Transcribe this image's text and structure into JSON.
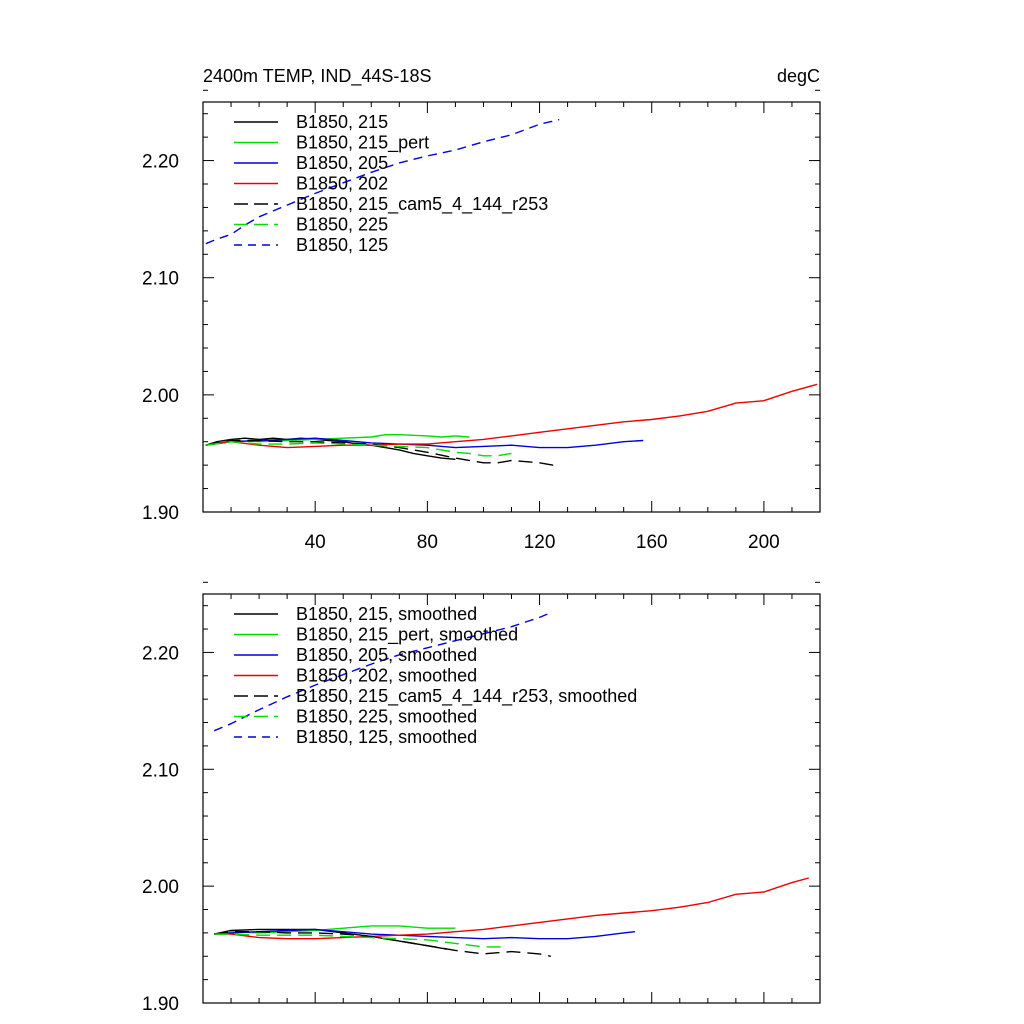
{
  "figure": {
    "title_left": "2400m TEMP, IND_44S-18S",
    "title_right": "degC"
  },
  "chart_data": [
    {
      "type": "line",
      "id": "raw",
      "xlim": [
        0,
        220
      ],
      "ylim": [
        1.9,
        2.25
      ],
      "xticks": [
        40,
        80,
        120,
        160,
        200
      ],
      "xtick_labels": [
        "40",
        "80",
        "120",
        "160",
        "200"
      ],
      "yticks": [
        1.9,
        2.0,
        2.1,
        2.2
      ],
      "ytick_labels": [
        "1.90",
        "2.00",
        "2.10",
        "2.20"
      ],
      "legend_position": "top-left",
      "series": [
        {
          "name": "B1850, 215",
          "color": "#000000",
          "dash": "solid",
          "x": [
            1,
            5,
            10,
            15,
            20,
            25,
            30,
            35,
            40,
            45,
            50,
            55,
            60,
            65,
            70,
            75,
            80,
            85,
            90
          ],
          "y": [
            1.957,
            1.96,
            1.962,
            1.963,
            1.962,
            1.963,
            1.962,
            1.963,
            1.962,
            1.961,
            1.96,
            1.958,
            1.957,
            1.955,
            1.953,
            1.95,
            1.948,
            1.946,
            1.945
          ]
        },
        {
          "name": "B1850, 215_pert",
          "color": "#00dd00",
          "dash": "solid",
          "x": [
            1,
            10,
            20,
            30,
            40,
            50,
            60,
            65,
            70,
            80,
            85,
            90,
            95
          ],
          "y": [
            1.957,
            1.961,
            1.96,
            1.961,
            1.962,
            1.963,
            1.964,
            1.966,
            1.966,
            1.965,
            1.964,
            1.965,
            1.964
          ]
        },
        {
          "name": "B1850, 205",
          "color": "#0000dd",
          "dash": "solid",
          "x": [
            1,
            10,
            20,
            30,
            40,
            50,
            60,
            70,
            80,
            90,
            100,
            110,
            120,
            130,
            140,
            150,
            157
          ],
          "y": [
            1.957,
            1.96,
            1.961,
            1.962,
            1.963,
            1.961,
            1.959,
            1.958,
            1.957,
            1.955,
            1.956,
            1.957,
            1.955,
            1.955,
            1.957,
            1.96,
            1.961
          ]
        },
        {
          "name": "B1850, 202",
          "color": "#ee0000",
          "dash": "solid",
          "x": [
            1,
            10,
            20,
            30,
            40,
            50,
            60,
            70,
            80,
            90,
            100,
            110,
            120,
            130,
            140,
            150,
            160,
            170,
            180,
            190,
            200,
            210,
            219
          ],
          "y": [
            1.957,
            1.96,
            1.957,
            1.955,
            1.956,
            1.957,
            1.957,
            1.958,
            1.958,
            1.96,
            1.962,
            1.965,
            1.968,
            1.971,
            1.974,
            1.977,
            1.979,
            1.982,
            1.986,
            1.993,
            1.995,
            2.003,
            2.009
          ]
        },
        {
          "name": "B1850, 215_cam5_4_144_r253",
          "color": "#000000",
          "dash": "longdash",
          "x": [
            1,
            10,
            20,
            30,
            40,
            50,
            60,
            70,
            80,
            90,
            100,
            105,
            110,
            120,
            127
          ],
          "y": [
            1.957,
            1.961,
            1.961,
            1.96,
            1.96,
            1.959,
            1.958,
            1.955,
            1.951,
            1.946,
            1.942,
            1.942,
            1.944,
            1.942,
            1.939
          ]
        },
        {
          "name": "B1850, 225",
          "color": "#00dd00",
          "dash": "longdash",
          "x": [
            1,
            10,
            20,
            30,
            40,
            50,
            60,
            70,
            80,
            85,
            90,
            95,
            100,
            105,
            110
          ],
          "y": [
            1.957,
            1.96,
            1.958,
            1.958,
            1.959,
            1.958,
            1.957,
            1.956,
            1.955,
            1.953,
            1.951,
            1.95,
            1.948,
            1.948,
            1.95
          ]
        },
        {
          "name": "B1850, 125",
          "color": "#0000dd",
          "dash": "dash",
          "x": [
            1,
            5,
            10,
            15,
            20,
            30,
            40,
            50,
            60,
            70,
            80,
            90,
            100,
            110,
            120,
            127
          ],
          "y": [
            2.129,
            2.133,
            2.137,
            2.145,
            2.152,
            2.162,
            2.172,
            2.181,
            2.19,
            2.198,
            2.204,
            2.209,
            2.216,
            2.222,
            2.231,
            2.235
          ]
        }
      ]
    },
    {
      "type": "line",
      "id": "smoothed",
      "xlim": [
        0,
        220
      ],
      "ylim": [
        1.9,
        2.25
      ],
      "xticks": [
        40,
        80,
        120,
        160,
        200
      ],
      "xtick_labels": [
        "",
        "",
        "",
        "",
        ""
      ],
      "yticks": [
        1.9,
        2.0,
        2.1,
        2.2
      ],
      "ytick_labels": [
        "1.90",
        "2.00",
        "2.10",
        "2.20"
      ],
      "legend_position": "top-left",
      "series": [
        {
          "name": "B1850, 215, smoothed",
          "color": "#000000",
          "dash": "solid",
          "x": [
            4,
            10,
            20,
            30,
            40,
            50,
            60,
            70,
            80,
            87
          ],
          "y": [
            1.959,
            1.962,
            1.963,
            1.963,
            1.963,
            1.96,
            1.957,
            1.953,
            1.949,
            1.946
          ]
        },
        {
          "name": "B1850, 215_pert, smoothed",
          "color": "#00dd00",
          "dash": "solid",
          "x": [
            4,
            10,
            20,
            30,
            40,
            50,
            60,
            70,
            80,
            90
          ],
          "y": [
            1.959,
            1.961,
            1.96,
            1.961,
            1.962,
            1.964,
            1.966,
            1.966,
            1.964,
            1.964
          ]
        },
        {
          "name": "B1850, 205, smoothed",
          "color": "#0000dd",
          "dash": "solid",
          "x": [
            4,
            10,
            20,
            30,
            40,
            50,
            60,
            70,
            80,
            90,
            100,
            110,
            120,
            130,
            140,
            150,
            154
          ],
          "y": [
            1.959,
            1.96,
            1.961,
            1.962,
            1.963,
            1.961,
            1.959,
            1.958,
            1.957,
            1.956,
            1.955,
            1.956,
            1.955,
            1.955,
            1.957,
            1.96,
            1.961
          ]
        },
        {
          "name": "B1850, 202, smoothed",
          "color": "#ee0000",
          "dash": "solid",
          "x": [
            4,
            10,
            20,
            30,
            40,
            50,
            60,
            70,
            80,
            90,
            100,
            110,
            120,
            130,
            140,
            150,
            160,
            170,
            180,
            190,
            200,
            210,
            216
          ],
          "y": [
            1.959,
            1.959,
            1.956,
            1.955,
            1.955,
            1.956,
            1.957,
            1.958,
            1.959,
            1.961,
            1.963,
            1.966,
            1.969,
            1.972,
            1.975,
            1.977,
            1.979,
            1.982,
            1.986,
            1.993,
            1.995,
            2.003,
            2.007
          ]
        },
        {
          "name": "B1850, 215_cam5_4_144_r253, smoothed",
          "color": "#000000",
          "dash": "longdash",
          "x": [
            4,
            10,
            20,
            30,
            40,
            50,
            60,
            70,
            80,
            90,
            100,
            110,
            120,
            124
          ],
          "y": [
            1.959,
            1.961,
            1.961,
            1.96,
            1.96,
            1.959,
            1.957,
            1.953,
            1.949,
            1.945,
            1.942,
            1.944,
            1.942,
            1.94
          ]
        },
        {
          "name": "B1850, 225, smoothed",
          "color": "#00dd00",
          "dash": "longdash",
          "x": [
            4,
            10,
            20,
            30,
            40,
            50,
            60,
            70,
            80,
            90,
            100,
            107
          ],
          "y": [
            1.959,
            1.959,
            1.958,
            1.958,
            1.958,
            1.957,
            1.956,
            1.955,
            1.954,
            1.951,
            1.948,
            1.948
          ]
        },
        {
          "name": "B1850, 125, smoothed",
          "color": "#0000dd",
          "dash": "dash",
          "x": [
            4,
            10,
            20,
            30,
            40,
            50,
            60,
            70,
            80,
            90,
            100,
            110,
            120,
            124
          ],
          "y": [
            2.133,
            2.139,
            2.151,
            2.162,
            2.172,
            2.181,
            2.19,
            2.198,
            2.204,
            2.21,
            2.216,
            2.222,
            2.23,
            2.234
          ]
        }
      ]
    }
  ]
}
